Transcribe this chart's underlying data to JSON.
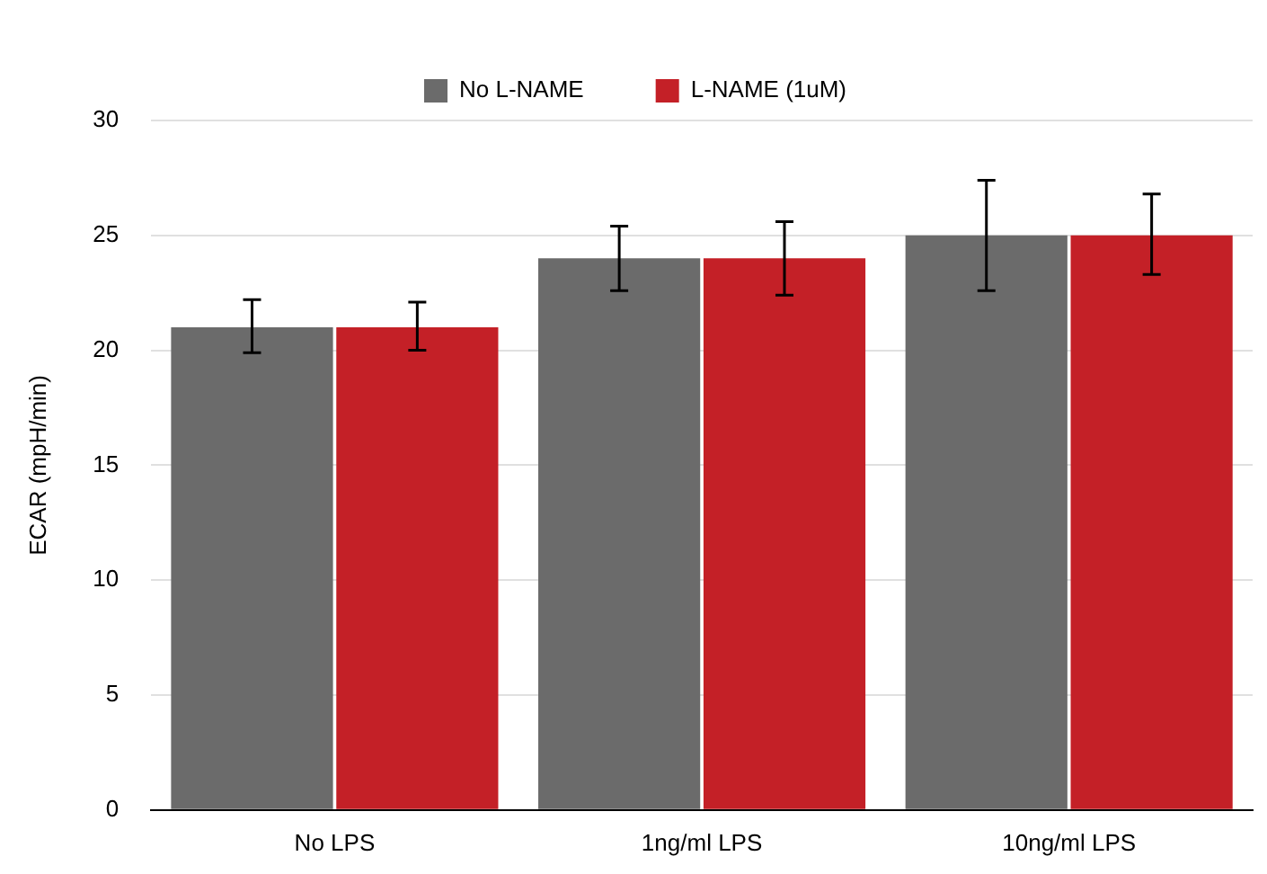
{
  "chart_data": {
    "type": "bar",
    "ylabel": "ECAR (mpH/min)",
    "categories": [
      "No LPS",
      "1ng/ml LPS",
      "10ng/ml LPS"
    ],
    "series": [
      {
        "name": "No L-NAME",
        "color": "#6b6b6b",
        "values": [
          21,
          24,
          25
        ],
        "errors": [
          [
            19.9,
            22.2
          ],
          [
            22.6,
            25.4
          ],
          [
            22.6,
            27.4
          ]
        ]
      },
      {
        "name": "L-NAME (1uM)",
        "color": "#c42027",
        "values": [
          21,
          24,
          25
        ],
        "errors": [
          [
            20,
            22.1
          ],
          [
            22.4,
            25.6
          ],
          [
            23.3,
            26.8
          ]
        ]
      }
    ],
    "ylim": [
      0,
      30
    ],
    "yticks": [
      0,
      5,
      10,
      15,
      20,
      25,
      30
    ],
    "grid": "y",
    "legend": "top"
  }
}
